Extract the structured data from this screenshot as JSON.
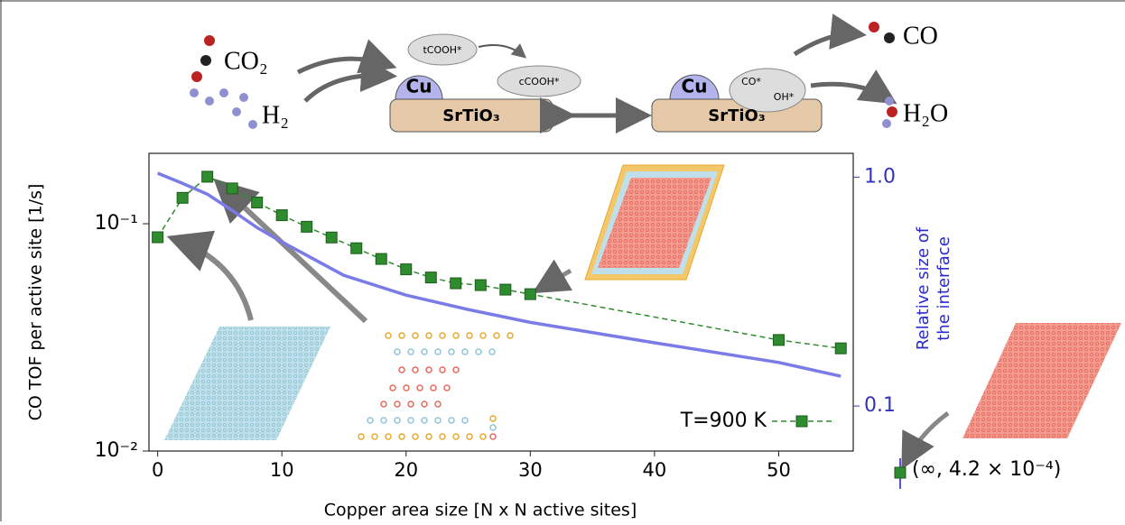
{
  "diagram": {
    "co2": "CO₂",
    "h2": "H₂",
    "cu_left": "Cu",
    "cu_right": "Cu",
    "support_left": "SrTiO₃",
    "support_right": "SrTiO₃",
    "tcooh": "tCOOH*",
    "ccooh": "cCOOH*",
    "co_ads": "CO*",
    "oh_ads": "OH*",
    "co": "CO",
    "h2o": "H₂O"
  },
  "chart_data": {
    "type": "line",
    "y_label": "CO TOF per active site [1/s]",
    "y2_label": [
      "Relative size of",
      "the interface"
    ],
    "x_label": "Copper area size [N x N active sites]",
    "annotation": "(∞, 4.2 × 10⁻⁴)",
    "xlim": [
      -0.7,
      56
    ],
    "xticks": [
      0,
      10,
      20,
      30,
      40,
      50
    ],
    "ylim": [
      0.01,
      0.204
    ],
    "yscale": "log",
    "yticks": [
      {
        "value": 0.1,
        "label": "10⁻¹"
      },
      {
        "value": 0.01,
        "label": "10⁻²"
      }
    ],
    "y2lim": [
      0.0636,
      1.27
    ],
    "y2scale": "log",
    "y2ticks": [
      {
        "value": 1,
        "label": "1.0"
      },
      0.1
    ],
    "legend": "lower right",
    "series": [
      {
        "name": "T=900 K",
        "color": "#2e8b2e",
        "x": [
          0,
          2,
          4,
          6,
          8,
          10,
          12,
          14,
          16,
          18,
          20,
          22,
          24,
          26,
          28,
          30,
          50,
          55
        ],
        "values": [
          0.0872,
          0.13,
          0.161,
          0.143,
          0.124,
          0.109,
          0.097,
          0.087,
          0.078,
          0.07,
          0.063,
          0.058,
          0.0547,
          0.0537,
          0.0513,
          0.049,
          0.0308,
          0.0283
        ]
      },
      {
        "color": "#7b7be8",
        "axis": "y2",
        "x": [
          0,
          2,
          4,
          6,
          8,
          10,
          15,
          20,
          25,
          30,
          40,
          50,
          55
        ],
        "values": [
          1.04,
          0.939,
          0.842,
          0.715,
          0.602,
          0.521,
          0.372,
          0.305,
          0.264,
          0.232,
          0.189,
          0.155,
          0.135
        ]
      }
    ]
  }
}
